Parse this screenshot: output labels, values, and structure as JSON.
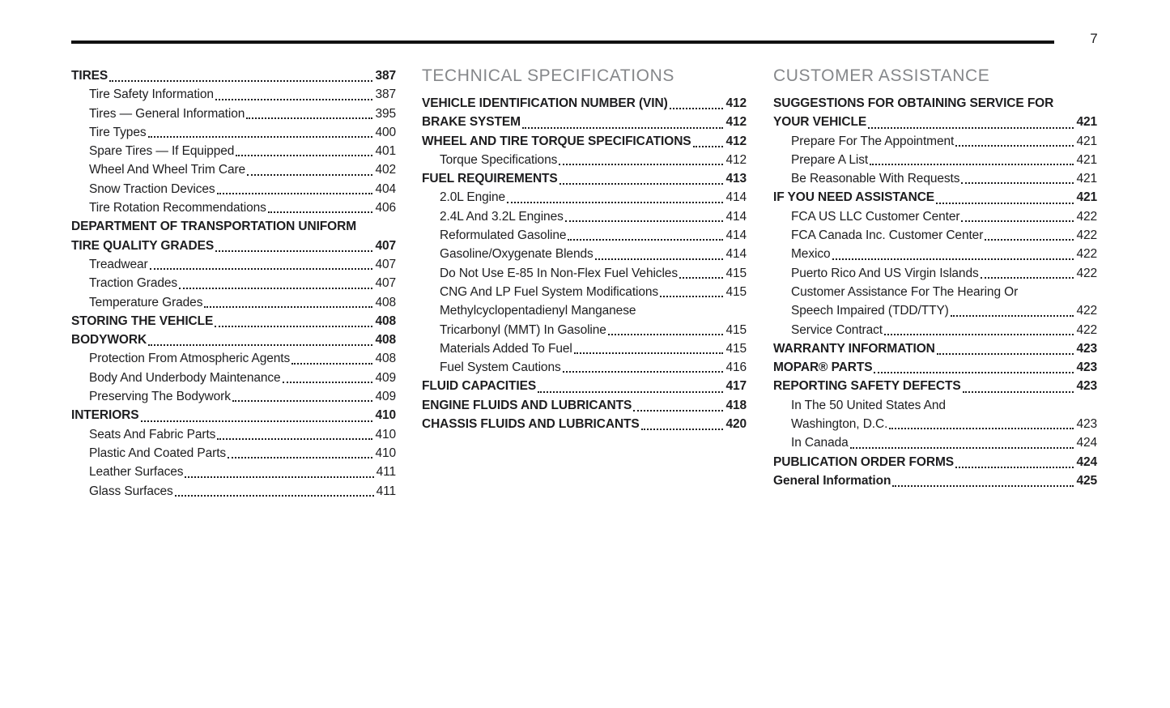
{
  "page_number": "7",
  "colors": {
    "text": "#1d1d1f",
    "heading_gray": "#85878a",
    "rule": "#111111",
    "background": "#ffffff"
  },
  "columns": [
    {
      "heading": "",
      "entries": [
        {
          "label": "TIRES",
          "page": "387",
          "level": "section"
        },
        {
          "label": "Tire Safety Information",
          "page": "387",
          "level": "sub"
        },
        {
          "label": "Tires — General Information",
          "page": "395",
          "level": "sub"
        },
        {
          "label": "Tire Types",
          "page": "400",
          "level": "sub"
        },
        {
          "label": "Spare Tires — If Equipped",
          "page": "401",
          "level": "sub"
        },
        {
          "label": "Wheel And Wheel Trim Care",
          "page": "402",
          "level": "sub"
        },
        {
          "label": "Snow Traction Devices",
          "page": "404",
          "level": "sub"
        },
        {
          "label": "Tire Rotation Recommendations",
          "page": "406",
          "level": "sub"
        },
        {
          "pre": "DEPARTMENT OF TRANSPORTATION UNIFORM",
          "label": "TIRE QUALITY GRADES",
          "page": "407",
          "level": "section"
        },
        {
          "label": "Treadwear",
          "page": "407",
          "level": "sub"
        },
        {
          "label": "Traction Grades",
          "page": "407",
          "level": "sub"
        },
        {
          "label": "Temperature Grades",
          "page": "408",
          "level": "sub"
        },
        {
          "label": "STORING THE VEHICLE",
          "page": "408",
          "level": "section"
        },
        {
          "label": "BODYWORK",
          "page": "408",
          "level": "section"
        },
        {
          "label": "Protection From Atmospheric Agents",
          "page": "408",
          "level": "sub"
        },
        {
          "label": "Body And Underbody Maintenance",
          "page": "409",
          "level": "sub"
        },
        {
          "label": "Preserving The Bodywork",
          "page": "409",
          "level": "sub"
        },
        {
          "label": "INTERIORS",
          "page": "410",
          "level": "section"
        },
        {
          "label": "Seats And Fabric Parts",
          "page": "410",
          "level": "sub"
        },
        {
          "label": "Plastic And Coated Parts",
          "page": "410",
          "level": "sub"
        },
        {
          "label": "Leather Surfaces",
          "page": "411",
          "level": "sub"
        },
        {
          "label": "Glass Surfaces",
          "page": "411",
          "level": "sub"
        }
      ]
    },
    {
      "heading": "TECHNICAL SPECIFICATIONS",
      "entries": [
        {
          "label": "VEHICLE IDENTIFICATION NUMBER (VIN)",
          "page": "412",
          "level": "section"
        },
        {
          "label": "BRAKE SYSTEM",
          "page": "412",
          "level": "section"
        },
        {
          "label": "WHEEL AND TIRE TORQUE SPECIFICATIONS",
          "page": "412",
          "level": "section"
        },
        {
          "label": "Torque Specifications",
          "page": "412",
          "level": "sub"
        },
        {
          "label": "FUEL REQUIREMENTS",
          "page": "413",
          "level": "section"
        },
        {
          "label": "2.0L Engine",
          "page": "414",
          "level": "sub"
        },
        {
          "label": "2.4L And 3.2L Engines",
          "page": "414",
          "level": "sub"
        },
        {
          "label": "Reformulated Gasoline",
          "page": "414",
          "level": "sub"
        },
        {
          "label": "Gasoline/Oxygenate Blends",
          "page": "414",
          "level": "sub"
        },
        {
          "label": "Do Not Use E-85 In Non-Flex Fuel Vehicles",
          "page": "415",
          "level": "sub"
        },
        {
          "label": "CNG And LP Fuel System Modifications",
          "page": "415",
          "level": "sub"
        },
        {
          "pre": "Methylcyclopentadienyl Manganese",
          "label": "Tricarbonyl (MMT) In Gasoline",
          "page": "415",
          "level": "sub"
        },
        {
          "label": "Materials Added To Fuel",
          "page": "415",
          "level": "sub"
        },
        {
          "label": "Fuel System Cautions",
          "page": "416",
          "level": "sub"
        },
        {
          "label": "FLUID CAPACITIES",
          "page": "417",
          "level": "section"
        },
        {
          "label": "ENGINE FLUIDS AND LUBRICANTS",
          "page": "418",
          "level": "section"
        },
        {
          "label": "CHASSIS FLUIDS AND LUBRICANTS",
          "page": "420",
          "level": "section"
        }
      ]
    },
    {
      "heading": "CUSTOMER ASSISTANCE",
      "entries": [
        {
          "pre": "SUGGESTIONS FOR OBTAINING SERVICE FOR",
          "label": "YOUR VEHICLE",
          "page": "421",
          "level": "section"
        },
        {
          "label": "Prepare For The Appointment",
          "page": "421",
          "level": "sub"
        },
        {
          "label": "Prepare A List",
          "page": "421",
          "level": "sub"
        },
        {
          "label": "Be Reasonable With Requests",
          "page": "421",
          "level": "sub"
        },
        {
          "label": "IF YOU NEED ASSISTANCE",
          "page": "421",
          "level": "section"
        },
        {
          "label": "FCA US LLC Customer Center",
          "page": "422",
          "level": "sub"
        },
        {
          "label": "FCA Canada Inc. Customer Center",
          "page": "422",
          "level": "sub"
        },
        {
          "label": "Mexico",
          "page": "422",
          "level": "sub"
        },
        {
          "label": "Puerto Rico And US Virgin Islands",
          "page": "422",
          "level": "sub"
        },
        {
          "pre": "Customer Assistance For The Hearing Or",
          "label": "Speech Impaired (TDD/TTY)",
          "page": "422",
          "level": "sub"
        },
        {
          "label": "Service Contract",
          "page": "422",
          "level": "sub"
        },
        {
          "label": "WARRANTY INFORMATION",
          "page": "423",
          "level": "section"
        },
        {
          "label": "MOPAR® PARTS",
          "page": "423",
          "level": "section"
        },
        {
          "label": "REPORTING SAFETY DEFECTS",
          "page": "423",
          "level": "section"
        },
        {
          "pre": "In The 50 United States And",
          "label": "Washington, D.C.",
          "page": "423",
          "level": "sub"
        },
        {
          "label": "In Canada",
          "page": "424",
          "level": "sub"
        },
        {
          "label": "PUBLICATION ORDER FORMS",
          "page": "424",
          "level": "section"
        },
        {
          "label": "General Information",
          "page": "425",
          "level": "section"
        }
      ]
    }
  ]
}
